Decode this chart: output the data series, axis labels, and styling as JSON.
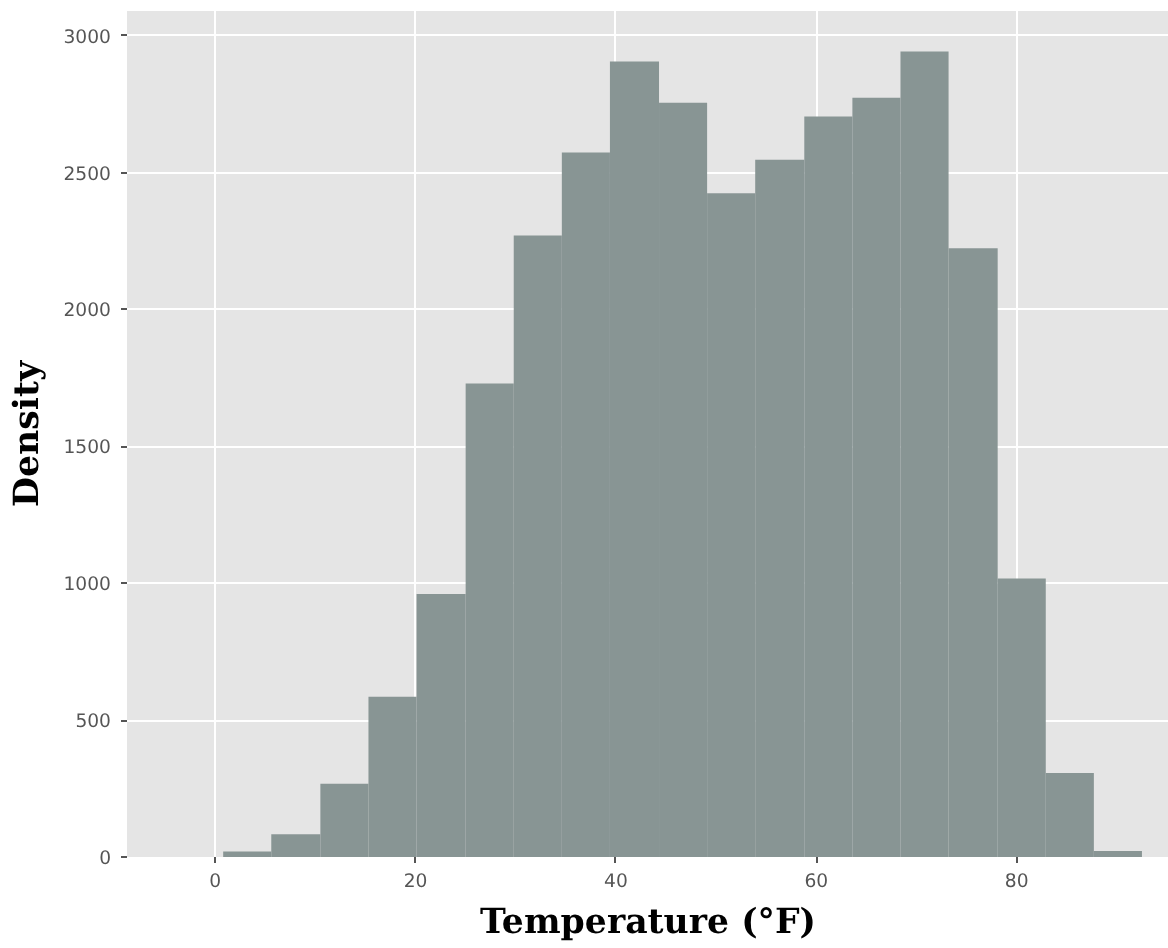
{
  "chart_data": {
    "type": "histogram",
    "xlabel": "Temperature (°F)",
    "ylabel": "Density",
    "bins": [
      0.8,
      5.6,
      10.5,
      15.3,
      20.1,
      25.0,
      29.8,
      34.6,
      39.4,
      44.3,
      49.1,
      53.9,
      58.8,
      63.6,
      68.4,
      73.2,
      78.1,
      82.9,
      87.7,
      92.5
    ],
    "values": [
      20,
      83,
      268,
      585,
      961,
      1729,
      2270,
      2573,
      2906,
      2755,
      2424,
      2547,
      2705,
      2773,
      2942,
      2223,
      1017,
      307,
      22
    ],
    "color": "#889594",
    "xlim": [
      -8.8,
      95.2
    ],
    "ylim": [
      0,
      3090
    ],
    "xticks": [
      0,
      20,
      40,
      60,
      80
    ],
    "yticks": [
      0,
      500,
      1000,
      1500,
      2000,
      2500,
      3000
    ],
    "grid": true
  }
}
